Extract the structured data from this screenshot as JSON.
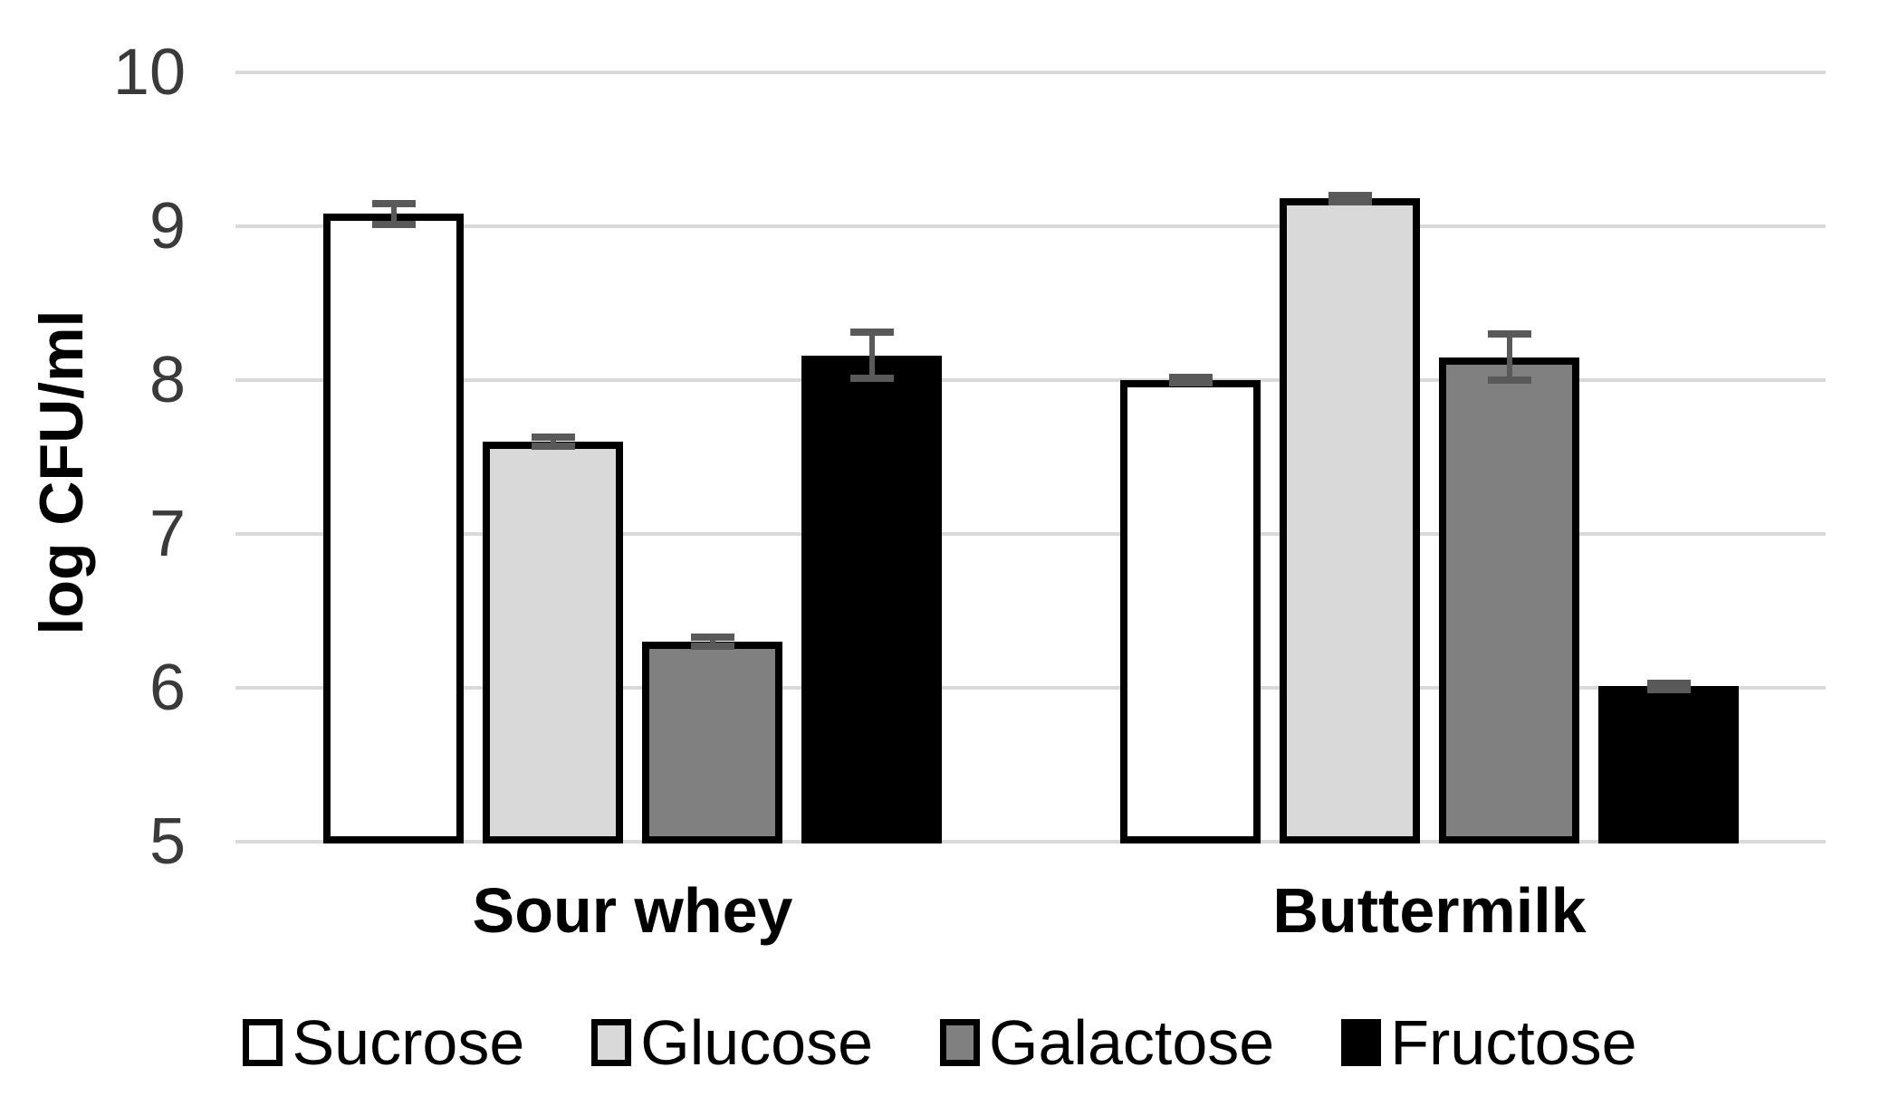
{
  "chart_data": {
    "type": "bar",
    "title": "",
    "ylabel": "log CFU/ml",
    "xlabel": "",
    "ylim": [
      5,
      10
    ],
    "yticks": [
      "10",
      "9",
      "8",
      "7",
      "6",
      "5"
    ],
    "ytick_values": [
      10,
      9,
      8,
      7,
      6,
      5
    ],
    "grid": "horizontal gridlines on",
    "legend_position": "bottom",
    "categories": [
      "Sour whey",
      "Buttermilk"
    ],
    "series": [
      {
        "name": "Sucrose",
        "fill": "#ffffff",
        "values": [
          9.08,
          8.0
        ],
        "errors": [
          0.07,
          0.02
        ]
      },
      {
        "name": "Glucose",
        "fill": "#d9d9d9",
        "values": [
          7.6,
          9.18
        ],
        "errors": [
          0.03,
          0.02
        ]
      },
      {
        "name": "Galactose",
        "fill": "#808080",
        "values": [
          6.3,
          8.15
        ],
        "errors": [
          0.03,
          0.15
        ]
      },
      {
        "name": "Fructose",
        "fill": "#000000",
        "values": [
          8.16,
          6.01
        ],
        "errors": [
          0.15,
          0.02
        ]
      }
    ],
    "colors": {
      "bar_border": "#000000",
      "error_bar": "#595959",
      "gridline": "#d9d9d9",
      "tick_text": "#3a3a3a",
      "label_text": "#000000",
      "background": "#ffffff"
    }
  }
}
